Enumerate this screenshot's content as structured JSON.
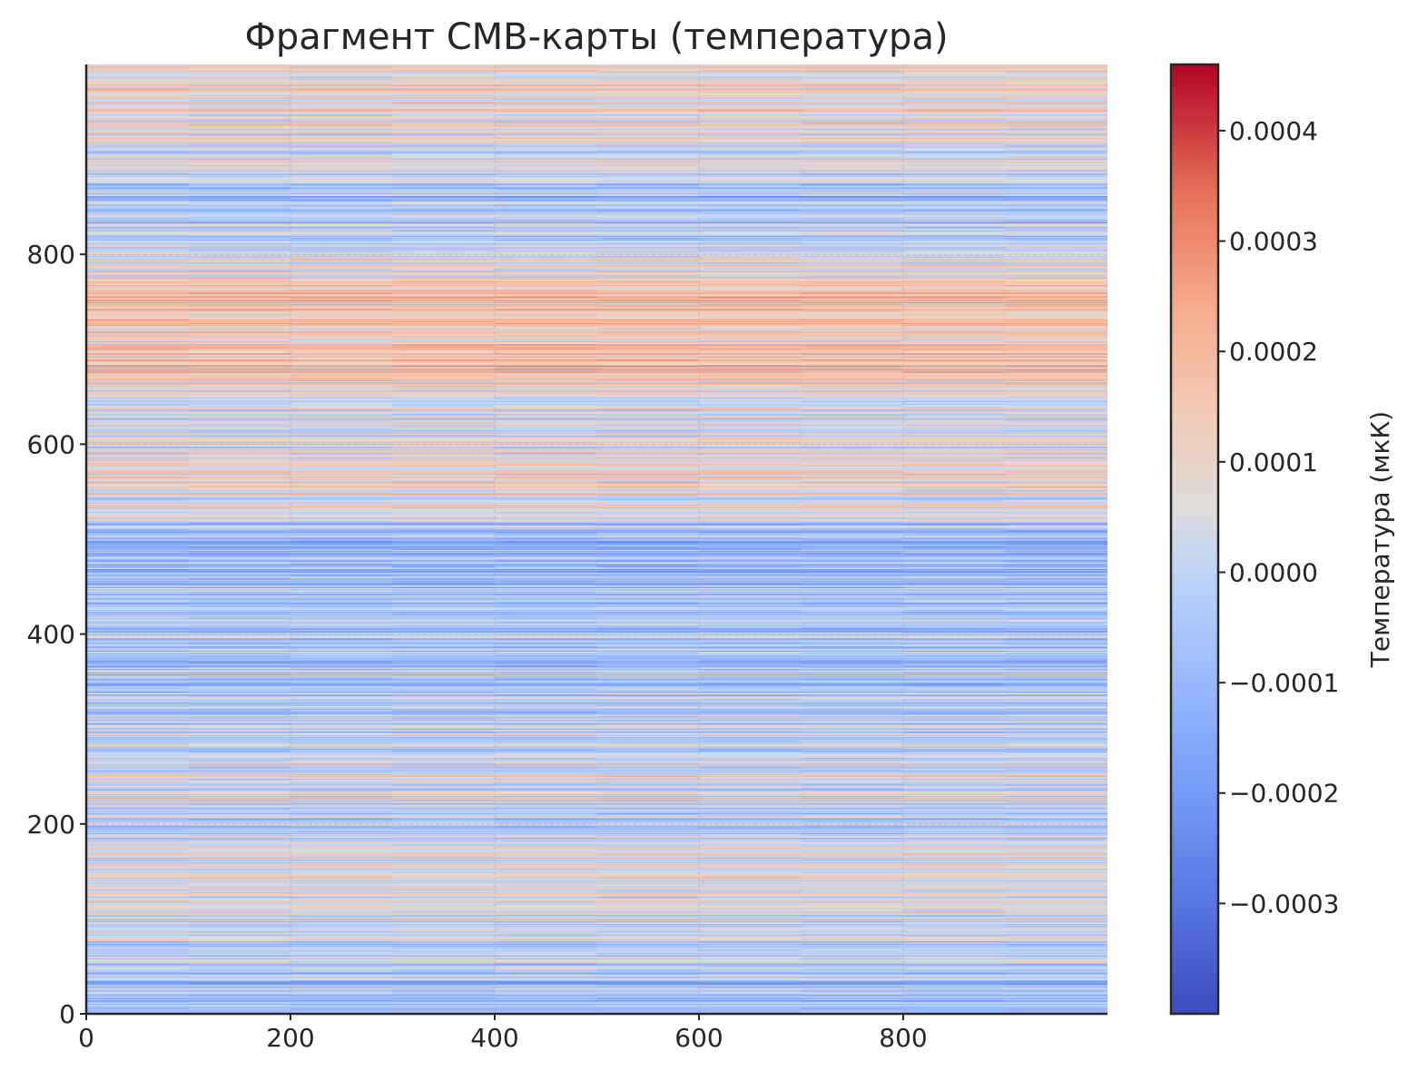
{
  "chart_data": {
    "type": "heatmap",
    "title": "Фрагмент CMB-карты (температура)",
    "xlabel": "",
    "ylabel": "",
    "colormap": "coolwarm",
    "colors": {
      "low": "#3b4cc0",
      "mid": "#dddddd",
      "high": "#b40426"
    },
    "xlim": [
      0,
      1000
    ],
    "ylim": [
      0,
      1000
    ],
    "x_ticks": [
      "0",
      "200",
      "400",
      "600",
      "800"
    ],
    "x_tick_values": [
      0,
      200,
      400,
      600,
      800
    ],
    "y_ticks": [
      "0",
      "200",
      "400",
      "600",
      "800"
    ],
    "y_tick_values": [
      0,
      200,
      400,
      600,
      800
    ],
    "grid": true,
    "data_description_hidden": false,
    "colorbar": {
      "label": "Температура (мкК)",
      "range": [
        -0.0004,
        0.00046
      ],
      "ticks": [
        "−0.0003",
        "−0.0002",
        "−0.0001",
        "0.0000",
        "0.0001",
        "0.0002",
        "0.0003",
        "0.0004"
      ],
      "tick_values": [
        -0.0003,
        -0.0002,
        -0.0001,
        0.0,
        0.0001,
        0.0002,
        0.0003,
        0.0004
      ]
    },
    "row_profile_bands": {
      "y_centers": [
        15,
        45,
        90,
        130,
        160,
        210,
        260,
        300,
        350,
        400,
        450,
        500,
        560,
        600,
        650,
        680,
        720,
        760,
        800,
        860,
        900,
        950
      ],
      "mean_values": [
        -8e-05,
        -6e-05,
        -2e-05,
        6e-05,
        8e-05,
        -4e-05,
        4e-05,
        0.0,
        -6e-05,
        -5e-05,
        -9e-05,
        -8e-05,
        0.00012,
        5e-05,
        3e-05,
        0.00018,
        0.00012,
        0.00016,
        3e-05,
        -8e-05,
        4e-05,
        0.0001
      ]
    }
  }
}
